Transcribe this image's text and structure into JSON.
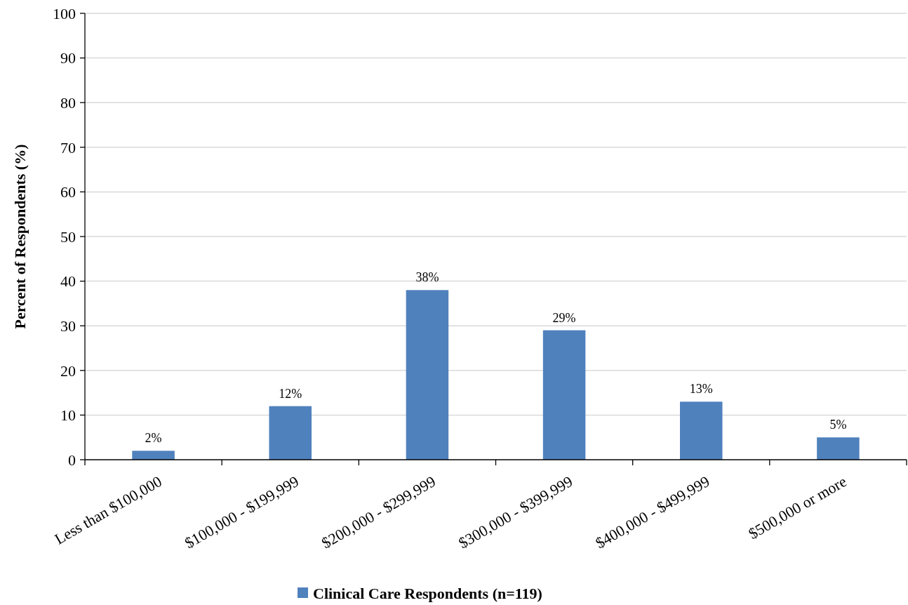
{
  "chart_data": {
    "type": "bar",
    "ylabel": "Percent of Respondents (%)",
    "categories": [
      "Less than $100,000",
      "$100,000 - $199,999",
      "$200,000 - $299,999",
      "$300,000 - $399,999",
      "$400,000 - $499,999",
      "$500,000 or more"
    ],
    "series": [
      {
        "name": "Clinical Care Respondents (n=119)",
        "color": "#4f81bd",
        "values": [
          2,
          12,
          38,
          29,
          13,
          5
        ],
        "value_labels": [
          "2%",
          "12%",
          "38%",
          "29%",
          "13%",
          "5%"
        ]
      }
    ],
    "ylim": [
      0,
      100
    ],
    "yticks": [
      0,
      10,
      20,
      30,
      40,
      50,
      60,
      70,
      80,
      90,
      100
    ],
    "grid": "y",
    "legend": "bottom"
  }
}
